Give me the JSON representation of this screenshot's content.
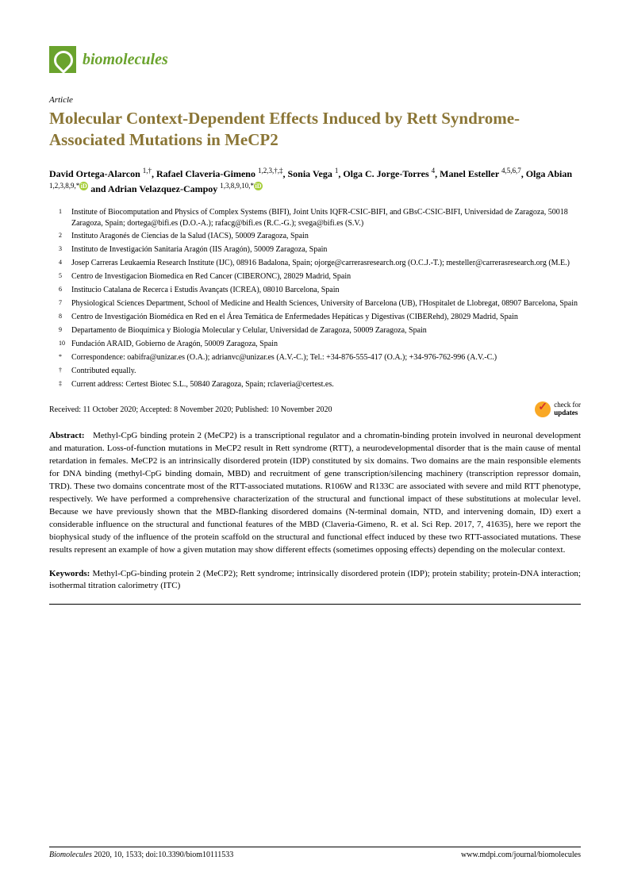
{
  "journal": {
    "name": "biomolecules",
    "name_color": "#6aa32d"
  },
  "article_type": "Article",
  "title": "Molecular Context-Dependent Effects Induced by Rett Syndrome-Associated Mutations in MeCP2",
  "title_color": "#8a7535",
  "authors_html": "David Ortega-Alarcon <sup>1,†</sup>, Rafael Claveria-Gimeno <sup>1,2,3,†,‡</sup>, Sonia Vega <sup>1</sup>, Olga C. Jorge-Torres <sup>4</sup>, Manel Esteller <sup>4,5,6,7</sup>, Olga Abian <sup>1,2,3,8,9,*</sup><span class=\"orcid\">iD</span> and Adrian Velazquez-Campoy <sup>1,3,8,9,10,*</sup><span class=\"orcid\">iD</span>",
  "affiliations": [
    {
      "n": "1",
      "t": "Institute of Biocomputation and Physics of Complex Systems (BIFI), Joint Units IQFR-CSIC-BIFI, and GBsC-CSIC-BIFI, Universidad de Zaragoza, 50018 Zaragoza, Spain; dortega@bifi.es (D.O.-A.); rafacg@bifi.es (R.C.-G.); svega@bifi.es (S.V.)"
    },
    {
      "n": "2",
      "t": "Instituto Aragonés de Ciencias de la Salud (IACS), 50009 Zaragoza, Spain"
    },
    {
      "n": "3",
      "t": "Instituto de Investigación Sanitaria Aragón (IIS Aragón), 50009 Zaragoza, Spain"
    },
    {
      "n": "4",
      "t": "Josep Carreras Leukaemia Research Institute (IJC), 08916 Badalona, Spain; ojorge@carrerasresearch.org (O.C.J.-T.); mesteller@carrerasresearch.org (M.E.)"
    },
    {
      "n": "5",
      "t": "Centro de Investigacion Biomedica en Red Cancer (CIBERONC), 28029 Madrid, Spain"
    },
    {
      "n": "6",
      "t": "Institucio Catalana de Recerca i Estudis Avançats (ICREA), 08010 Barcelona, Spain"
    },
    {
      "n": "7",
      "t": "Physiological Sciences Department, School of Medicine and Health Sciences, University of Barcelona (UB), l'Hospitalet de Llobregat, 08907 Barcelona, Spain"
    },
    {
      "n": "8",
      "t": "Centro de Investigación Biomédica en Red en el Área Temática de Enfermedades Hepáticas y Digestivas (CIBERehd), 28029 Madrid, Spain"
    },
    {
      "n": "9",
      "t": "Departamento de Bioquímica y Biología Molecular y Celular, Universidad de Zaragoza, 50009 Zaragoza, Spain"
    },
    {
      "n": "10",
      "t": "Fundación ARAID, Gobierno de Aragón, 50009 Zaragoza, Spain"
    },
    {
      "n": "*",
      "t": "Correspondence: oabifra@unizar.es (O.A.); adrianvc@unizar.es (A.V.-C.); Tel.: +34-876-555-417 (O.A.); +34-976-762-996 (A.V.-C.)"
    },
    {
      "n": "†",
      "t": "Contributed equally."
    },
    {
      "n": "‡",
      "t": "Current address: Certest Biotec S.L., 50840 Zaragoza, Spain; rclaveria@certest.es."
    }
  ],
  "dates": "Received: 11 October 2020; Accepted: 8 November 2020; Published: 10 November 2020",
  "check_updates": {
    "line1": "check for",
    "line2": "updates"
  },
  "abstract": {
    "label": "Abstract:",
    "text": "Methyl-CpG binding protein 2 (MeCP2) is a transcriptional regulator and a chromatin-binding protein involved in neuronal development and maturation. Loss-of-function mutations in MeCP2 result in Rett syndrome (RTT), a neurodevelopmental disorder that is the main cause of mental retardation in females. MeCP2 is an intrinsically disordered protein (IDP) constituted by six domains. Two domains are the main responsible elements for DNA binding (methyl-CpG binding domain, MBD) and recruitment of gene transcription/silencing machinery (transcription repressor domain, TRD). These two domains concentrate most of the RTT-associated mutations. R106W and R133C are associated with severe and mild RTT phenotype, respectively. We have performed a comprehensive characterization of the structural and functional impact of these substitutions at molecular level. Because we have previously shown that the MBD-flanking disordered domains (N-terminal domain, NTD, and intervening domain, ID) exert a considerable influence on the structural and functional features of the MBD (Claveria-Gimeno, R. et al. Sci Rep. 2017, 7, 41635), here we report the biophysical study of the influence of the protein scaffold on the structural and functional effect induced by these two RTT-associated mutations. These results represent an example of how a given mutation may show different effects (sometimes opposing effects) depending on the molecular context."
  },
  "keywords": {
    "label": "Keywords:",
    "text": "Methyl-CpG-binding protein 2 (MeCP2); Rett syndrome; intrinsically disordered protein (IDP); protein stability; protein-DNA interaction; isothermal titration calorimetry (ITC)"
  },
  "footer": {
    "left_italic": "Biomolecules",
    "left_rest": " 2020, 10, 1533; doi:10.3390/biom10111533",
    "right": "www.mdpi.com/journal/biomolecules"
  }
}
